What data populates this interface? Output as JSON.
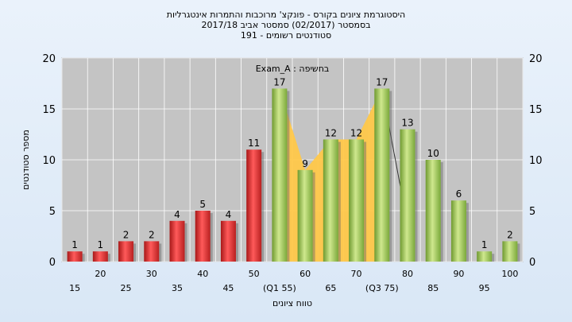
{
  "chart_data": {
    "type": "bar",
    "title_lines": [
      "היסטוגרמת ציונים בקורס - פונקצ' מרוכבות והתמרות אינטגרליות",
      "בסמסטר  (02/2017)  סמסטר אביב 2017/18",
      "191 - סטודנטים רשומים"
    ],
    "annotation": "בחשיפה : Exam_A",
    "ylabel": "מספר סטודנטים",
    "xlabel": "טווח ציונים",
    "ylim": [
      0,
      20
    ],
    "yticks": [
      0,
      5,
      10,
      15,
      20
    ],
    "grid": true,
    "categories": [
      "15",
      "20",
      "25",
      "30",
      "35",
      "40",
      "45",
      "50",
      "55",
      "60",
      "65",
      "70",
      "75",
      "80",
      "85",
      "90",
      "95",
      "100"
    ],
    "category_labels": [
      "15",
      "20",
      "25",
      "30",
      "35",
      "40",
      "45",
      "50",
      "(Q1 55)",
      "60",
      "65",
      "70",
      "(Q3 75)",
      "80",
      "85",
      "90",
      "95",
      "100"
    ],
    "values": [
      1,
      1,
      2,
      2,
      4,
      5,
      4,
      11,
      17,
      9,
      12,
      12,
      17,
      13,
      10,
      6,
      1,
      2
    ],
    "fail_threshold": 50,
    "colors": {
      "fail": "#e23a3a",
      "pass": "#9cc45a",
      "iqr_fill": "#ffc84a",
      "plot_bg": "#c4c4c4",
      "background": "#e3edf8"
    }
  }
}
